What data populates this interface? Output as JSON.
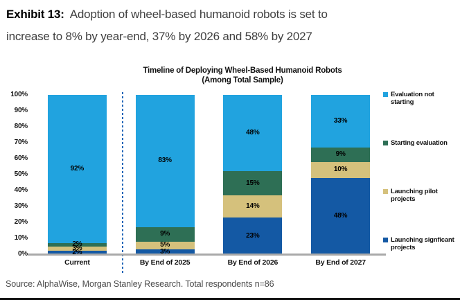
{
  "exhibit": {
    "label": "Exhibit 13:",
    "title_lines": [
      "Adoption of wheel-based humanoid robots is set to",
      "increase to 8% by year-end, 37% by 2026 and 58% by 2027"
    ]
  },
  "chart_data": {
    "type": "bar",
    "stacked": true,
    "title": "Timeline of Deploying Wheel-Based Humanoid Robots",
    "subtitle": "(Among Total Sample)",
    "categories": [
      "Current",
      "By End of 2025",
      "By End of 2026",
      "By End of 2027"
    ],
    "series": [
      {
        "name": "Evaluation not starting",
        "color": "#21A3DF",
        "values": [
          92,
          83,
          48,
          33
        ]
      },
      {
        "name": "Starting evaluation",
        "color": "#2E6F55",
        "values": [
          2,
          9,
          15,
          9
        ]
      },
      {
        "name": "Launching pilot projects",
        "color": "#D5C17C",
        "values": [
          3,
          5,
          14,
          10
        ]
      },
      {
        "name": "Launching signficant projects",
        "color": "#1459A4",
        "values": [
          2,
          3,
          23,
          48
        ]
      }
    ],
    "value_suffix": "%",
    "y_axis": {
      "min": 0,
      "max": 100,
      "step": 10,
      "tick_suffix": "%"
    },
    "legend_position": "right",
    "gridlines": false,
    "divider": {
      "after_category": "Current",
      "style": "dashed",
      "color": "#2166B8"
    }
  },
  "source": "Source: AlphaWise, Morgan Stanley Research. Total respondents n=86"
}
